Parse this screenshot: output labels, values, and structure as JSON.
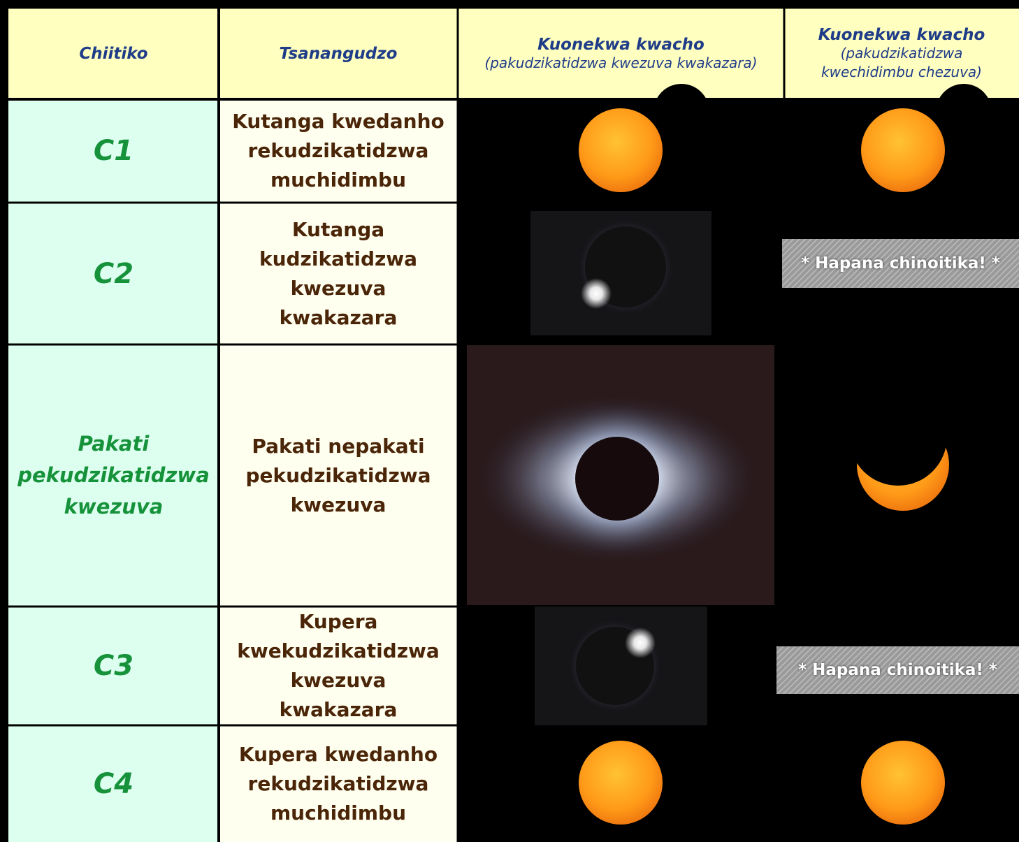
{
  "table": {
    "header": [
      {
        "title": "Chiitiko"
      },
      {
        "title": "Tsanangudzo"
      },
      {
        "title": "Kuonekwa kwacho",
        "note": "(pakudzikatidzwa kwezuva kwakazara)"
      },
      {
        "title": "Kuonekwa kwacho",
        "note": "(pakudzikatidzwa kwechidimbu chezuva)"
      }
    ],
    "rows": [
      {
        "event": "C1",
        "description": "Kutanga kwedanho rekudzikatidzwa muchidimbu"
      },
      {
        "event": "C2",
        "description": "Kutanga kudzikatidzwa kwezuva kwakazara",
        "partial": "* Hapana chinoitika! *"
      },
      {
        "event": "Pakati pekudzikatidzwa kwezuva",
        "description": "Pakati nepakati pekudzikatidzwa kwezuva"
      },
      {
        "event": "C3",
        "description": "Kupera kwekudzikatidzwa kwezuva kwakazara",
        "partial": "* Hapana chinoitika! *"
      },
      {
        "event": "C4",
        "description": "Kupera kwedanho rekudzikatidzwa muchidimbu"
      }
    ]
  }
}
